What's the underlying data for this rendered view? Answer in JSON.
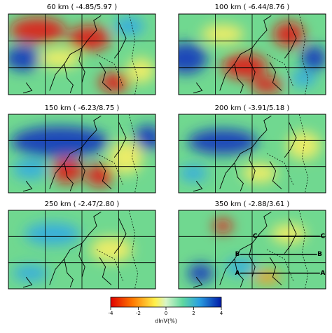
{
  "panels": [
    {
      "title": "60 km ( -4.85/5.97 )"
    },
    {
      "title": "100 km ( -6.44/8.76 )"
    },
    {
      "title": "150 km ( -6.23/8.75 )"
    },
    {
      "title": "200 km ( -3.91/5.18 )"
    },
    {
      "title": "250 km ( -2.47/2.80 )"
    },
    {
      "title": "350 km ( -2.88/3.61 )",
      "labels": [
        "C",
        "C",
        "B",
        "B",
        "A",
        "A"
      ]
    }
  ],
  "colorbar": {
    "label": "dlnV(%)",
    "lim": [
      -4,
      4
    ],
    "ticks": [
      -4,
      -2,
      0,
      2,
      4
    ]
  }
}
